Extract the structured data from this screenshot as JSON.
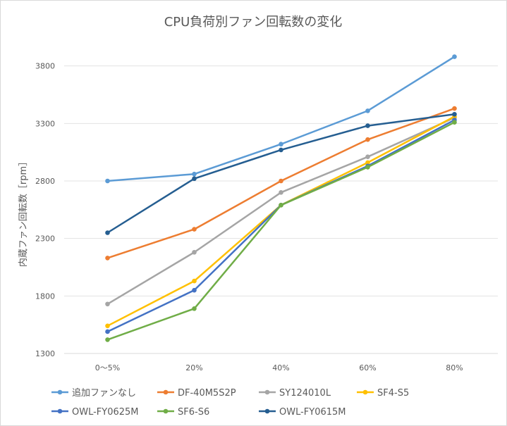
{
  "chart_data": {
    "type": "line",
    "title": "CPU負荷別ファン回転数の変化",
    "xlabel": "",
    "ylabel": "内蔵ファン回転数［rpm］",
    "categories": [
      "0～5%",
      "20%",
      "40%",
      "60%",
      "80%"
    ],
    "ylim": [
      1300,
      4000
    ],
    "yticks": [
      "1300",
      "1800",
      "2300",
      "2800",
      "3300",
      "3800"
    ],
    "grid": "horizontal",
    "legend_position": "bottom",
    "series": [
      {
        "name": "追加ファンなし",
        "color": "#5b9bd5",
        "values": [
          2800,
          2860,
          3120,
          3410,
          3880
        ]
      },
      {
        "name": "DF-40M5S2P",
        "color": "#ed7d31",
        "values": [
          2130,
          2380,
          2800,
          3160,
          3430
        ]
      },
      {
        "name": "SY124010L",
        "color": "#a5a5a5",
        "values": [
          1730,
          2180,
          2700,
          3010,
          3350
        ]
      },
      {
        "name": "SF4-S5",
        "color": "#ffc000",
        "values": [
          1540,
          1930,
          2590,
          2960,
          3360
        ]
      },
      {
        "name": "OWL-FY0625M",
        "color": "#4472c4",
        "values": [
          1490,
          1850,
          2590,
          2930,
          3330
        ]
      },
      {
        "name": "SF6-S6",
        "color": "#70ad47",
        "values": [
          1420,
          1690,
          2590,
          2920,
          3310
        ]
      },
      {
        "name": "OWL-FY0615M",
        "color": "#255e91",
        "values": [
          2350,
          2820,
          3070,
          3280,
          3380
        ]
      }
    ]
  }
}
